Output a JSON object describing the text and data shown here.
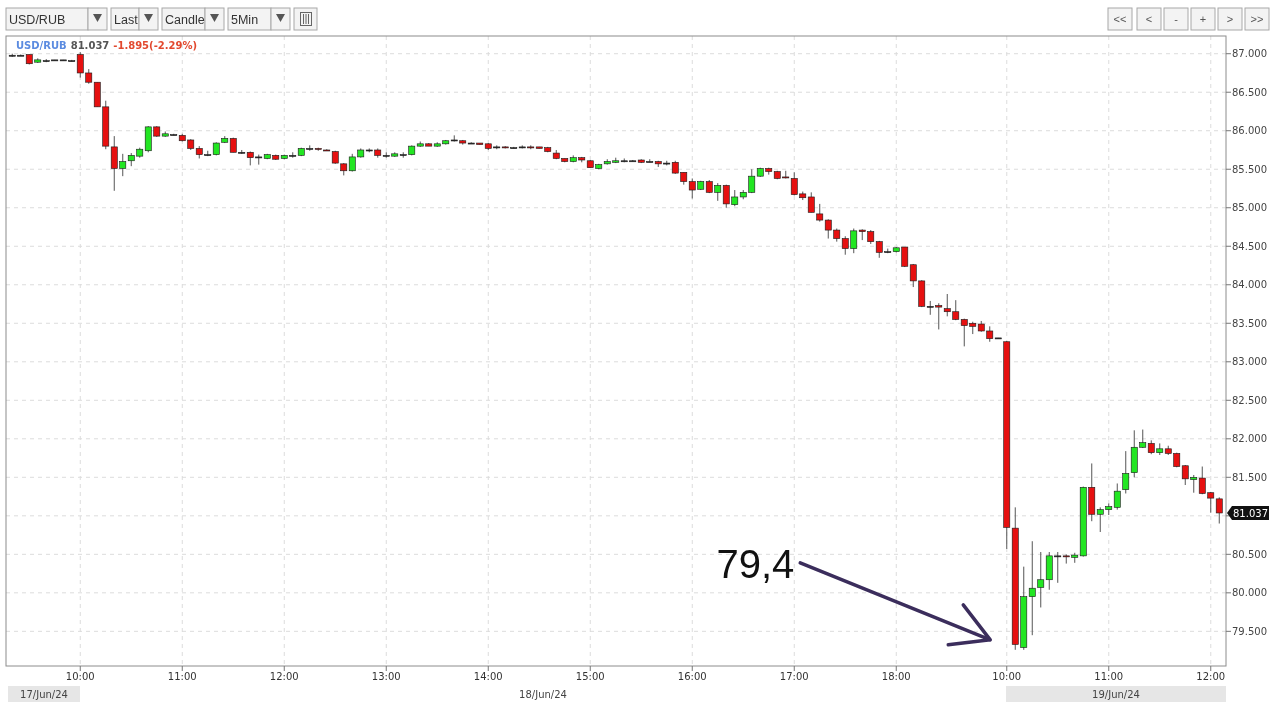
{
  "chart_data": {
    "type": "candlestick",
    "title": "USD/RUB",
    "subtitle": "81.037 -1.895(-2.29%)",
    "categories": [
      null,
      null,
      null,
      null,
      null,
      null,
      null,
      null,
      "10:00",
      null,
      null,
      null,
      null,
      null,
      null,
      null,
      null,
      null,
      null,
      null,
      "11:00",
      null,
      null,
      null,
      null,
      null,
      null,
      null,
      null,
      null,
      null,
      null,
      "12:00",
      null,
      null,
      null,
      null,
      null,
      null,
      null,
      null,
      null,
      null,
      null,
      "13:00",
      null,
      null,
      null,
      null,
      null,
      null,
      null,
      null,
      null,
      null,
      null,
      "14:00",
      null,
      null,
      null,
      null,
      null,
      null,
      null,
      null,
      null,
      null,
      null,
      "15:00",
      null,
      null,
      null,
      null,
      null,
      null,
      null,
      null,
      null,
      null,
      null,
      "16:00",
      null,
      null,
      null,
      null,
      null,
      null,
      null,
      null,
      null,
      null,
      null,
      "17:00",
      null,
      null,
      null,
      null,
      null,
      null,
      null,
      null,
      null,
      null,
      null,
      "18:00",
      null,
      null,
      null,
      null,
      null,
      null,
      null,
      null,
      null,
      null,
      null,
      null,
      "10:00",
      null,
      null,
      null,
      null,
      null,
      null,
      null,
      null,
      null,
      null,
      null,
      "11:00",
      null,
      null,
      null,
      null,
      null,
      null,
      null,
      null,
      null,
      null,
      null,
      "12:00",
      null
    ],
    "ohlc": [
      [
        86.98,
        87.0,
        86.96,
        86.98
      ],
      [
        86.98,
        86.99,
        86.97,
        86.98
      ],
      [
        86.99,
        86.99,
        86.86,
        86.87
      ],
      [
        86.89,
        86.94,
        86.88,
        86.92
      ],
      [
        86.91,
        86.93,
        86.89,
        86.91
      ],
      [
        86.92,
        86.92,
        86.91,
        86.92
      ],
      [
        86.92,
        86.92,
        86.91,
        86.92
      ],
      [
        86.91,
        86.92,
        86.9,
        86.91
      ],
      [
        86.99,
        87.02,
        86.69,
        86.75
      ],
      [
        86.75,
        86.8,
        86.61,
        86.63
      ],
      [
        86.63,
        86.63,
        86.31,
        86.31
      ],
      [
        86.31,
        86.39,
        85.76,
        85.8
      ],
      [
        85.79,
        85.93,
        85.22,
        85.51
      ],
      [
        85.51,
        85.7,
        85.41,
        85.6
      ],
      [
        85.61,
        85.71,
        85.54,
        85.68
      ],
      [
        85.67,
        85.78,
        85.65,
        85.76
      ],
      [
        85.74,
        86.06,
        85.72,
        86.05
      ],
      [
        86.05,
        86.06,
        85.92,
        85.93
      ],
      [
        85.93,
        85.99,
        85.92,
        85.96
      ],
      [
        85.95,
        85.96,
        85.94,
        85.95
      ],
      [
        85.94,
        85.96,
        85.86,
        85.87
      ],
      [
        85.88,
        85.89,
        85.75,
        85.77
      ],
      [
        85.77,
        85.8,
        85.64,
        85.69
      ],
      [
        85.69,
        85.74,
        85.67,
        85.69
      ],
      [
        85.69,
        85.85,
        85.68,
        85.84
      ],
      [
        85.85,
        85.93,
        85.84,
        85.9
      ],
      [
        85.9,
        85.91,
        85.72,
        85.72
      ],
      [
        85.72,
        85.75,
        85.7,
        85.72
      ],
      [
        85.72,
        85.73,
        85.55,
        85.65
      ],
      [
        85.66,
        85.69,
        85.56,
        85.66
      ],
      [
        85.64,
        85.7,
        85.63,
        85.69
      ],
      [
        85.68,
        85.69,
        85.62,
        85.63
      ],
      [
        85.64,
        85.69,
        85.63,
        85.68
      ],
      [
        85.68,
        85.72,
        85.65,
        85.68
      ],
      [
        85.68,
        85.78,
        85.67,
        85.77
      ],
      [
        85.77,
        85.81,
        85.74,
        85.77
      ],
      [
        85.77,
        85.78,
        85.74,
        85.76
      ],
      [
        85.75,
        85.76,
        85.74,
        85.74
      ],
      [
        85.73,
        85.74,
        85.57,
        85.58
      ],
      [
        85.57,
        85.58,
        85.42,
        85.48
      ],
      [
        85.48,
        85.7,
        85.47,
        85.66
      ],
      [
        85.66,
        85.77,
        85.65,
        85.75
      ],
      [
        85.75,
        85.77,
        85.72,
        85.75
      ],
      [
        85.75,
        85.77,
        85.65,
        85.68
      ],
      [
        85.68,
        85.72,
        85.65,
        85.68
      ],
      [
        85.67,
        85.72,
        85.66,
        85.7
      ],
      [
        85.69,
        85.72,
        85.65,
        85.69
      ],
      [
        85.69,
        85.81,
        85.68,
        85.8
      ],
      [
        85.8,
        85.86,
        85.79,
        85.83
      ],
      [
        85.83,
        85.84,
        85.8,
        85.8
      ],
      [
        85.8,
        85.85,
        85.79,
        85.83
      ],
      [
        85.83,
        85.88,
        85.82,
        85.87
      ],
      [
        85.88,
        85.94,
        85.86,
        85.88
      ],
      [
        85.87,
        85.88,
        85.82,
        85.84
      ],
      [
        85.84,
        85.85,
        85.83,
        85.84
      ],
      [
        85.84,
        85.84,
        85.82,
        85.82
      ],
      [
        85.83,
        85.84,
        85.75,
        85.77
      ],
      [
        85.79,
        85.81,
        85.76,
        85.79
      ],
      [
        85.79,
        85.8,
        85.77,
        85.78
      ],
      [
        85.78,
        85.79,
        85.77,
        85.78
      ],
      [
        85.79,
        85.81,
        85.77,
        85.79
      ],
      [
        85.79,
        85.81,
        85.76,
        85.78
      ],
      [
        85.79,
        85.79,
        85.77,
        85.77
      ],
      [
        85.78,
        85.79,
        85.72,
        85.73
      ],
      [
        85.71,
        85.75,
        85.63,
        85.64
      ],
      [
        85.64,
        85.64,
        85.59,
        85.6
      ],
      [
        85.6,
        85.68,
        85.59,
        85.65
      ],
      [
        85.65,
        85.66,
        85.59,
        85.62
      ],
      [
        85.61,
        85.62,
        85.52,
        85.52
      ],
      [
        85.51,
        85.57,
        85.5,
        85.56
      ],
      [
        85.57,
        85.63,
        85.56,
        85.6
      ],
      [
        85.59,
        85.65,
        85.58,
        85.61
      ],
      [
        85.61,
        85.64,
        85.59,
        85.61
      ],
      [
        85.61,
        85.62,
        85.6,
        85.61
      ],
      [
        85.62,
        85.63,
        85.58,
        85.59
      ],
      [
        85.6,
        85.63,
        85.59,
        85.6
      ],
      [
        85.6,
        85.61,
        85.53,
        85.57
      ],
      [
        85.58,
        85.61,
        85.55,
        85.58
      ],
      [
        85.59,
        85.61,
        85.44,
        85.45
      ],
      [
        85.46,
        85.46,
        85.3,
        85.34
      ],
      [
        85.34,
        85.38,
        85.12,
        85.23
      ],
      [
        85.24,
        85.35,
        85.23,
        85.34
      ],
      [
        85.34,
        85.36,
        85.19,
        85.2
      ],
      [
        85.2,
        85.32,
        85.09,
        85.29
      ],
      [
        85.29,
        85.3,
        85.0,
        85.05
      ],
      [
        85.04,
        85.23,
        85.02,
        85.14
      ],
      [
        85.14,
        85.23,
        85.11,
        85.2
      ],
      [
        85.2,
        85.5,
        85.19,
        85.41
      ],
      [
        85.41,
        85.52,
        85.4,
        85.51
      ],
      [
        85.51,
        85.52,
        85.43,
        85.47
      ],
      [
        85.47,
        85.48,
        85.37,
        85.38
      ],
      [
        85.4,
        85.48,
        85.38,
        85.39
      ],
      [
        85.38,
        85.46,
        85.16,
        85.17
      ],
      [
        85.18,
        85.21,
        85.1,
        85.13
      ],
      [
        85.14,
        85.2,
        84.94,
        84.94
      ],
      [
        84.92,
        85.05,
        84.82,
        84.84
      ],
      [
        84.84,
        84.85,
        84.6,
        84.71
      ],
      [
        84.71,
        84.73,
        84.56,
        84.6
      ],
      [
        84.6,
        84.63,
        84.39,
        84.47
      ],
      [
        84.47,
        84.73,
        84.41,
        84.7
      ],
      [
        84.71,
        84.72,
        84.58,
        84.69
      ],
      [
        84.69,
        84.71,
        84.53,
        84.56
      ],
      [
        84.56,
        84.57,
        84.35,
        84.42
      ],
      [
        84.43,
        84.47,
        84.41,
        84.43
      ],
      [
        84.43,
        84.49,
        84.42,
        84.48
      ],
      [
        84.49,
        84.49,
        84.23,
        84.24
      ],
      [
        84.26,
        84.27,
        83.97,
        84.05
      ],
      [
        84.05,
        84.06,
        83.71,
        83.72
      ],
      [
        83.72,
        83.79,
        83.61,
        83.72
      ],
      [
        83.73,
        83.76,
        83.42,
        83.71
      ],
      [
        83.69,
        83.88,
        83.59,
        83.65
      ],
      [
        83.65,
        83.8,
        83.54,
        83.55
      ],
      [
        83.55,
        83.56,
        83.2,
        83.47
      ],
      [
        83.5,
        83.52,
        83.36,
        83.46
      ],
      [
        83.49,
        83.53,
        83.39,
        83.4
      ],
      [
        83.4,
        83.46,
        83.26,
        83.3
      ],
      [
        83.31,
        83.31,
        83.3,
        83.31
      ],
      [
        83.26,
        83.27,
        80.57,
        80.85
      ],
      [
        80.84,
        81.11,
        79.26,
        79.33
      ],
      [
        79.29,
        80.34,
        79.26,
        79.95
      ],
      [
        79.95,
        80.67,
        79.45,
        80.06
      ],
      [
        80.07,
        80.53,
        79.81,
        80.17
      ],
      [
        80.17,
        80.53,
        80.04,
        80.48
      ],
      [
        80.48,
        80.53,
        80.13,
        80.48
      ],
      [
        80.48,
        80.5,
        80.38,
        80.47
      ],
      [
        80.46,
        80.52,
        80.39,
        80.49
      ],
      [
        80.48,
        81.38,
        80.47,
        81.37
      ],
      [
        81.37,
        81.68,
        80.93,
        81.02
      ],
      [
        81.02,
        81.11,
        80.79,
        81.08
      ],
      [
        81.08,
        81.16,
        81.01,
        81.12
      ],
      [
        81.11,
        81.42,
        81.08,
        81.32
      ],
      [
        81.34,
        81.84,
        81.29,
        81.55
      ],
      [
        81.56,
        82.11,
        81.5,
        81.89
      ],
      [
        81.89,
        82.12,
        81.88,
        81.95
      ],
      [
        81.94,
        81.98,
        81.8,
        81.82
      ],
      [
        81.82,
        81.94,
        81.79,
        81.87
      ],
      [
        81.87,
        81.91,
        81.79,
        81.81
      ],
      [
        81.81,
        81.82,
        81.63,
        81.64
      ],
      [
        81.65,
        81.66,
        81.4,
        81.48
      ],
      [
        81.47,
        81.53,
        81.3,
        81.5
      ],
      [
        81.49,
        81.64,
        81.28,
        81.29
      ],
      [
        81.3,
        81.31,
        81.04,
        81.23
      ],
      [
        81.22,
        81.24,
        80.9,
        81.037
      ]
    ],
    "colors": [
      "#333333",
      "#333333",
      "#e61010",
      "#22e622",
      "#333333",
      "#333333",
      "#333333",
      "#333333",
      "#e61010",
      "#e61010",
      "#e61010",
      "#e61010",
      "#e61010",
      "#22e622",
      "#22e622",
      "#22e622",
      "#22e622",
      "#e61010",
      "#22e622",
      "#333333",
      "#e61010",
      "#e61010",
      "#e61010",
      "#333333",
      "#22e622",
      "#22e622",
      "#e61010",
      "#333333",
      "#e61010",
      "#333333",
      "#22e622",
      "#e61010",
      "#22e622",
      "#333333",
      "#22e622",
      "#333333",
      "#e61010",
      "#e61010",
      "#e61010",
      "#e61010",
      "#22e622",
      "#22e622",
      "#333333",
      "#e61010",
      "#333333",
      "#22e622",
      "#333333",
      "#22e622",
      "#22e622",
      "#e61010",
      "#22e622",
      "#22e622",
      "#333333",
      "#e61010",
      "#333333",
      "#e61010",
      "#e61010",
      "#333333",
      "#e61010",
      "#333333",
      "#333333",
      "#e61010",
      "#e61010",
      "#e61010",
      "#e61010",
      "#e61010",
      "#22e622",
      "#e61010",
      "#e61010",
      "#22e622",
      "#22e622",
      "#22e622",
      "#333333",
      "#333333",
      "#e61010",
      "#333333",
      "#e61010",
      "#333333",
      "#e61010",
      "#e61010",
      "#e61010",
      "#22e622",
      "#e61010",
      "#22e622",
      "#e61010",
      "#22e622",
      "#22e622",
      "#22e622",
      "#22e622",
      "#e61010",
      "#e61010",
      "#e61010",
      "#e61010",
      "#e61010",
      "#e61010",
      "#e61010",
      "#e61010",
      "#e61010",
      "#e61010",
      "#22e622",
      "#e61010",
      "#e61010",
      "#e61010",
      "#333333",
      "#22e622",
      "#e61010",
      "#e61010",
      "#e61010",
      "#333333",
      "#e61010",
      "#e61010",
      "#e61010",
      "#e61010",
      "#e61010",
      "#e61010",
      "#e61010",
      "#333333",
      "#e61010",
      "#e61010",
      "#22e622",
      "#22e622",
      "#22e622",
      "#22e622",
      "#333333",
      "#e61010",
      "#22e622",
      "#22e622",
      "#e61010",
      "#22e622",
      "#22e622",
      "#22e622",
      "#22e622",
      "#22e622",
      "#22e622",
      "#e61010",
      "#22e622",
      "#e61010",
      "#e61010",
      "#e61010",
      "#22e622",
      "#e61010",
      "#e61010",
      "#e61010"
    ],
    "ylim": [
      79.05,
      87.23
    ],
    "yticks": [
      {
        "value": 79.5,
        "label": "79.500"
      },
      {
        "value": 80,
        "label": "80.000"
      },
      {
        "value": 80.5,
        "label": "80.500"
      },
      {
        "value": 81,
        "label": null
      },
      {
        "value": 81.5,
        "label": "81.500"
      },
      {
        "value": 82,
        "label": "82.000"
      },
      {
        "value": 82.5,
        "label": "82.500"
      },
      {
        "value": 83,
        "label": "83.000"
      },
      {
        "value": 83.5,
        "label": "83.500"
      },
      {
        "value": 84,
        "label": "84.000"
      },
      {
        "value": 84.5,
        "label": "84.500"
      },
      {
        "value": 85,
        "label": "85.000"
      },
      {
        "value": 85.5,
        "label": "85.500"
      },
      {
        "value": 86,
        "label": "86.000"
      },
      {
        "value": 86.5,
        "label": "86.500"
      },
      {
        "value": 87,
        "label": "87.000"
      }
    ],
    "grid": true,
    "annotations": [
      "USD/RUB",
      "Last",
      "Candle",
      "5Min",
      "<<",
      "<",
      "-",
      "+",
      ">",
      ">>",
      "17/Jun/24",
      "18/Jun/24",
      "19/Jun/24",
      "79,4",
      "81.037"
    ]
  }
}
